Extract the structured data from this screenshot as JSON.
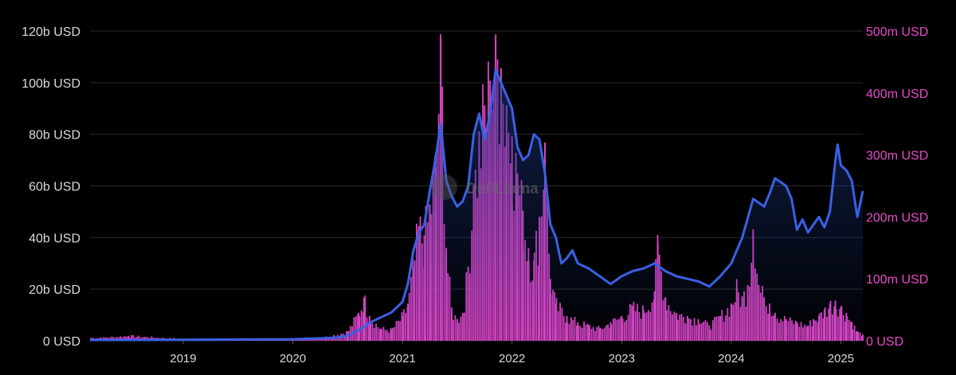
{
  "watermark": "DefiLlama",
  "colors": {
    "background": "#000000",
    "tvl_line": "#3b60e4",
    "tvl_fill_top": "#1f3a8a",
    "volume_bars": "#d943c5",
    "right_axis_text": "#e64ac8",
    "left_axis_text": "#d9d9d9",
    "grid": "#2a2a2a"
  },
  "chart_data": {
    "type": "line+bar",
    "x_ticks": [
      "2019",
      "2020",
      "2021",
      "2022",
      "2023",
      "2024",
      "2025"
    ],
    "x_tick_values": [
      2019,
      2020,
      2021,
      2022,
      2023,
      2024,
      2025
    ],
    "xlim": [
      2018.15,
      2025.2
    ],
    "y_left": {
      "ticks": [
        "0 USD",
        "20b USD",
        "40b USD",
        "60b USD",
        "80b USD",
        "100b USD",
        "120b USD"
      ],
      "tick_values": [
        0,
        20,
        40,
        60,
        80,
        100,
        120
      ],
      "unit": "billion USD",
      "ylim": [
        0,
        120
      ]
    },
    "y_right": {
      "ticks": [
        "0 USD",
        "100m USD",
        "200m USD",
        "300m USD",
        "400m USD",
        "500m USD"
      ],
      "tick_values": [
        0,
        100,
        200,
        300,
        400,
        500
      ],
      "unit": "million USD",
      "ylim": [
        0,
        500
      ]
    },
    "grid": true,
    "series": [
      {
        "axis": "left",
        "type": "area-line",
        "points": [
          [
            2018.15,
            0.3
          ],
          [
            2018.5,
            0.3
          ],
          [
            2019.0,
            0.4
          ],
          [
            2019.5,
            0.5
          ],
          [
            2020.0,
            0.6
          ],
          [
            2020.2,
            0.9
          ],
          [
            2020.4,
            1.2
          ],
          [
            2020.5,
            2.0
          ],
          [
            2020.6,
            4.0
          ],
          [
            2020.7,
            7.0
          ],
          [
            2020.8,
            9.0
          ],
          [
            2020.9,
            11.0
          ],
          [
            2021.0,
            15.0
          ],
          [
            2021.05,
            22.0
          ],
          [
            2021.1,
            35.0
          ],
          [
            2021.15,
            42.0
          ],
          [
            2021.2,
            45.0
          ],
          [
            2021.25,
            58.0
          ],
          [
            2021.3,
            70.0
          ],
          [
            2021.35,
            84.0
          ],
          [
            2021.4,
            62.0
          ],
          [
            2021.45,
            56.0
          ],
          [
            2021.5,
            52.0
          ],
          [
            2021.55,
            54.0
          ],
          [
            2021.6,
            60.0
          ],
          [
            2021.65,
            80.0
          ],
          [
            2021.7,
            88.0
          ],
          [
            2021.75,
            78.0
          ],
          [
            2021.8,
            88.0
          ],
          [
            2021.85,
            105.0
          ],
          [
            2021.9,
            100.0
          ],
          [
            2021.95,
            95.0
          ],
          [
            2022.0,
            90.0
          ],
          [
            2022.05,
            75.0
          ],
          [
            2022.1,
            70.0
          ],
          [
            2022.15,
            72.0
          ],
          [
            2022.2,
            80.0
          ],
          [
            2022.25,
            78.0
          ],
          [
            2022.3,
            65.0
          ],
          [
            2022.35,
            45.0
          ],
          [
            2022.4,
            40.0
          ],
          [
            2022.45,
            30.0
          ],
          [
            2022.5,
            32.0
          ],
          [
            2022.55,
            35.0
          ],
          [
            2022.6,
            30.0
          ],
          [
            2022.7,
            28.0
          ],
          [
            2022.8,
            25.0
          ],
          [
            2022.9,
            22.0
          ],
          [
            2023.0,
            25.0
          ],
          [
            2023.1,
            27.0
          ],
          [
            2023.2,
            28.0
          ],
          [
            2023.3,
            30.0
          ],
          [
            2023.4,
            27.0
          ],
          [
            2023.5,
            25.0
          ],
          [
            2023.6,
            24.0
          ],
          [
            2023.7,
            23.0
          ],
          [
            2023.8,
            21.0
          ],
          [
            2023.9,
            25.0
          ],
          [
            2024.0,
            30.0
          ],
          [
            2024.1,
            40.0
          ],
          [
            2024.2,
            55.0
          ],
          [
            2024.3,
            52.0
          ],
          [
            2024.35,
            57.0
          ],
          [
            2024.4,
            63.0
          ],
          [
            2024.5,
            60.0
          ],
          [
            2024.55,
            55.0
          ],
          [
            2024.6,
            43.0
          ],
          [
            2024.65,
            47.0
          ],
          [
            2024.7,
            42.0
          ],
          [
            2024.8,
            48.0
          ],
          [
            2024.85,
            44.0
          ],
          [
            2024.9,
            50.0
          ],
          [
            2024.95,
            70.0
          ],
          [
            2024.97,
            76.0
          ],
          [
            2025.0,
            68.0
          ],
          [
            2025.05,
            66.0
          ],
          [
            2025.1,
            62.0
          ],
          [
            2025.15,
            48.0
          ],
          [
            2025.2,
            58.0
          ]
        ]
      },
      {
        "axis": "right",
        "type": "bar",
        "points": [
          [
            2018.25,
            5
          ],
          [
            2018.5,
            8
          ],
          [
            2019.0,
            3
          ],
          [
            2019.5,
            3
          ],
          [
            2020.0,
            4
          ],
          [
            2020.3,
            6
          ],
          [
            2020.5,
            15
          ],
          [
            2020.6,
            45
          ],
          [
            2020.65,
            70
          ],
          [
            2020.7,
            40
          ],
          [
            2020.8,
            20
          ],
          [
            2020.9,
            18
          ],
          [
            2021.0,
            40
          ],
          [
            2021.05,
            60
          ],
          [
            2021.1,
            120
          ],
          [
            2021.15,
            185
          ],
          [
            2021.2,
            170
          ],
          [
            2021.25,
            220
          ],
          [
            2021.3,
            280
          ],
          [
            2021.35,
            490
          ],
          [
            2021.4,
            150
          ],
          [
            2021.45,
            50
          ],
          [
            2021.5,
            35
          ],
          [
            2021.55,
            45
          ],
          [
            2021.6,
            120
          ],
          [
            2021.65,
            250
          ],
          [
            2021.7,
            320
          ],
          [
            2021.75,
            380
          ],
          [
            2021.8,
            420
          ],
          [
            2021.85,
            490
          ],
          [
            2021.9,
            440
          ],
          [
            2021.95,
            380
          ],
          [
            2022.0,
            330
          ],
          [
            2022.05,
            270
          ],
          [
            2022.1,
            210
          ],
          [
            2022.15,
            150
          ],
          [
            2022.2,
            130
          ],
          [
            2022.25,
            200
          ],
          [
            2022.3,
            320
          ],
          [
            2022.35,
            100
          ],
          [
            2022.4,
            60
          ],
          [
            2022.5,
            40
          ],
          [
            2022.6,
            30
          ],
          [
            2022.7,
            25
          ],
          [
            2022.8,
            20
          ],
          [
            2022.9,
            30
          ],
          [
            2023.0,
            40
          ],
          [
            2023.1,
            55
          ],
          [
            2023.2,
            50
          ],
          [
            2023.3,
            80
          ],
          [
            2023.33,
            160
          ],
          [
            2023.4,
            70
          ],
          [
            2023.5,
            45
          ],
          [
            2023.6,
            40
          ],
          [
            2023.7,
            35
          ],
          [
            2023.8,
            25
          ],
          [
            2023.9,
            40
          ],
          [
            2024.0,
            60
          ],
          [
            2024.05,
            85
          ],
          [
            2024.1,
            70
          ],
          [
            2024.15,
            90
          ],
          [
            2024.2,
            180
          ],
          [
            2024.25,
            90
          ],
          [
            2024.3,
            70
          ],
          [
            2024.35,
            60
          ],
          [
            2024.4,
            45
          ],
          [
            2024.5,
            35
          ],
          [
            2024.6,
            30
          ],
          [
            2024.7,
            25
          ],
          [
            2024.75,
            35
          ],
          [
            2024.8,
            40
          ],
          [
            2024.85,
            50
          ],
          [
            2024.9,
            60
          ],
          [
            2024.95,
            65
          ],
          [
            2025.0,
            55
          ],
          [
            2025.05,
            45
          ],
          [
            2025.1,
            30
          ],
          [
            2025.15,
            15
          ],
          [
            2025.2,
            10
          ]
        ]
      }
    ]
  }
}
